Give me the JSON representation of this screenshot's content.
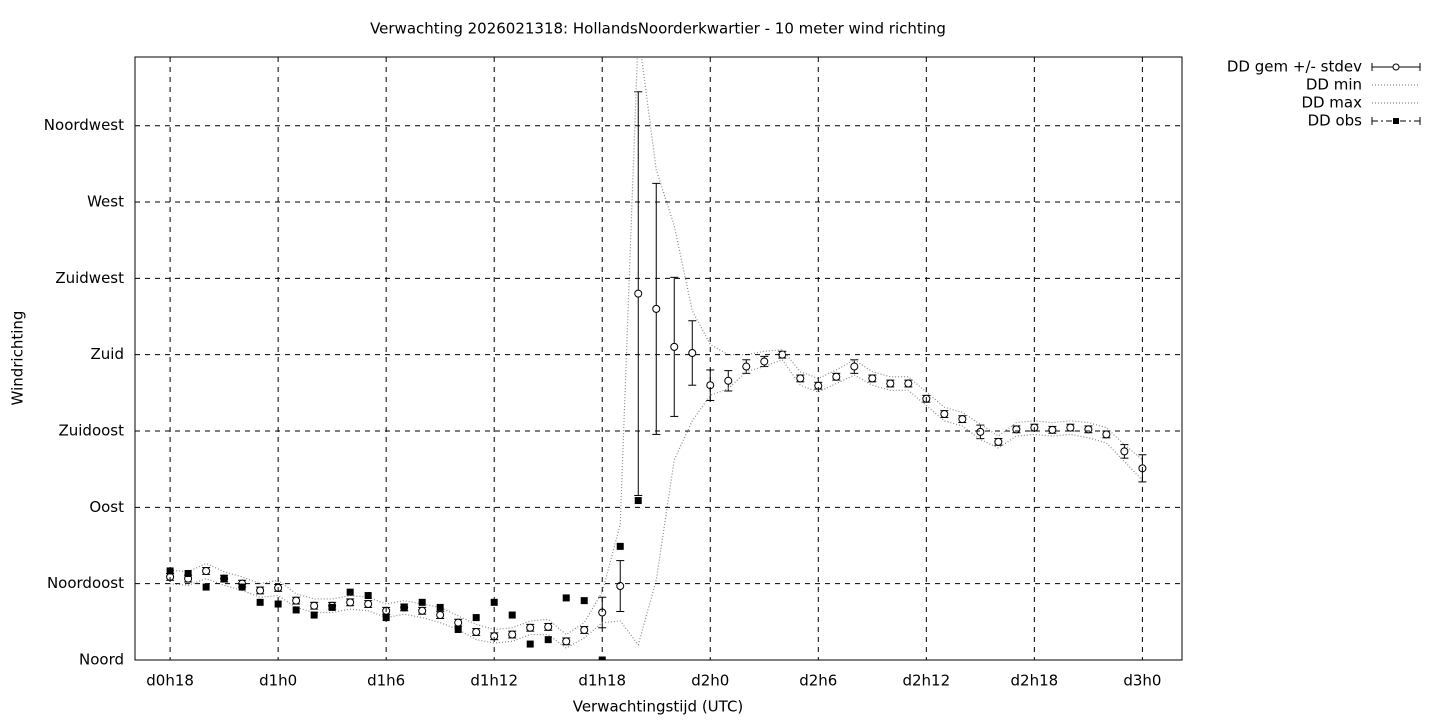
{
  "chart_data": {
    "type": "errorline",
    "title": "Verwachting 2026021318: HollandsNoorderkwartier - 10 meter wind richting",
    "xlabel": "Verwachtingstijd (UTC)",
    "ylabel": "Windrichting",
    "x": [
      18,
      19,
      20,
      21,
      22,
      23,
      24,
      25,
      26,
      27,
      28,
      29,
      30,
      31,
      32,
      33,
      34,
      35,
      36,
      37,
      38,
      39,
      40,
      41,
      42,
      43,
      44,
      45,
      46,
      47,
      48,
      49,
      50,
      51,
      52,
      53,
      54,
      55,
      56,
      57,
      58,
      59,
      60,
      61,
      62,
      63,
      64,
      65,
      66,
      67,
      68,
      69,
      70,
      71,
      72
    ],
    "series": [
      {
        "name": "DD gem +/- stdev",
        "color": "#000000",
        "style": "errorbars",
        "values": [
          49,
          48,
          52.5,
          48,
          45,
          41,
          42.5,
          35,
          32,
          32,
          34,
          33,
          29,
          31,
          29,
          26.5,
          22,
          16.5,
          14,
          15,
          19,
          19.5,
          11,
          17.7,
          28,
          43.6,
          216,
          207,
          184.6,
          181,
          162,
          164.6,
          173,
          176,
          180,
          166,
          161.7,
          167,
          173,
          166,
          163,
          163,
          154,
          145,
          142,
          134.5,
          128.6,
          136,
          137,
          135.7,
          137,
          136,
          133,
          123,
          113
        ],
        "errors": [
          2,
          2,
          2,
          2,
          2,
          2,
          2,
          2,
          2,
          2,
          2,
          2,
          2,
          2,
          2,
          2,
          2,
          2,
          2,
          2,
          2,
          2,
          2,
          2,
          9,
          15,
          119,
          74,
          41,
          19,
          9,
          6,
          4,
          3,
          2,
          2,
          2,
          2,
          4,
          2,
          2,
          2,
          2,
          2,
          2,
          4,
          2,
          2,
          2,
          2,
          2,
          2,
          2,
          4,
          8
        ]
      },
      {
        "name": "DD min",
        "color": "#888888",
        "style": "dotted",
        "values": [
          45,
          44,
          48,
          44,
          41,
          37,
          38,
          31,
          28,
          28,
          30,
          29,
          25,
          27,
          25,
          22,
          18,
          12,
          10,
          11,
          15,
          15,
          7,
          13,
          22,
          23,
          9,
          47,
          118,
          141,
          156,
          160,
          170,
          173,
          177,
          162,
          158,
          163,
          168,
          162,
          159,
          159,
          150,
          141,
          138,
          130,
          125,
          132,
          133,
          132,
          133,
          131,
          128,
          117,
          106
        ]
      },
      {
        "name": "DD max",
        "color": "#888888",
        "style": "dotted",
        "values": [
          53,
          52,
          57,
          52,
          49,
          45,
          47,
          39,
          36,
          36,
          38,
          37,
          33,
          35,
          33,
          31,
          26,
          21,
          18,
          19,
          23,
          24,
          15,
          22,
          40,
          80,
          370,
          289,
          256,
          206,
          186,
          180,
          180,
          182,
          183,
          170,
          166,
          171,
          177,
          170,
          167,
          167,
          158,
          149,
          146,
          139,
          132,
          140,
          141,
          140,
          141,
          140,
          137,
          127,
          118
        ]
      },
      {
        "name": "DD obs",
        "color": "#000000",
        "style": "squares",
        "values": [
          52.5,
          51,
          43,
          48,
          43,
          34,
          33,
          29.5,
          26.5,
          31,
          40,
          38,
          25,
          31,
          34,
          31,
          18,
          25,
          34,
          26.5,
          9.4,
          12,
          36.6,
          35,
          0,
          67,
          94,
          null,
          null,
          null,
          null,
          null,
          null,
          null,
          null,
          null,
          null,
          null,
          null,
          null,
          null,
          null,
          null,
          null,
          null,
          null,
          null,
          null,
          null,
          null,
          null,
          null,
          null,
          null,
          null
        ]
      }
    ],
    "xlim": [
      16.05,
      74.2
    ],
    "ylim": [
      0,
      355.5
    ],
    "xticks": [
      {
        "value": 18,
        "label": "d0h18"
      },
      {
        "value": 24,
        "label": "d1h0"
      },
      {
        "value": 30,
        "label": "d1h6"
      },
      {
        "value": 36,
        "label": "d1h12"
      },
      {
        "value": 42,
        "label": "d1h18"
      },
      {
        "value": 48,
        "label": "d2h0"
      },
      {
        "value": 54,
        "label": "d2h6"
      },
      {
        "value": 60,
        "label": "d2h12"
      },
      {
        "value": 66,
        "label": "d2h18"
      },
      {
        "value": 72,
        "label": "d3h0"
      }
    ],
    "yticks": [
      {
        "value": 0,
        "label": "Noord"
      },
      {
        "value": 45,
        "label": "Noordoost"
      },
      {
        "value": 90,
        "label": "Oost"
      },
      {
        "value": 135,
        "label": "Zuidoost"
      },
      {
        "value": 180,
        "label": "Zuid"
      },
      {
        "value": 225,
        "label": "Zuidwest"
      },
      {
        "value": 270,
        "label": "West"
      },
      {
        "value": 315,
        "label": "Noordwest"
      }
    ],
    "grid": true,
    "legend": "outside-right"
  }
}
